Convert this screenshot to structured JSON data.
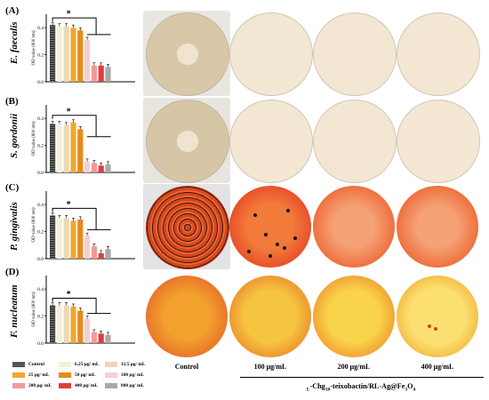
{
  "panels": [
    {
      "letter": "(A)",
      "species": "E. faecalis"
    },
    {
      "letter": "(B)",
      "species": "S. gordonii"
    },
    {
      "letter": "(C)",
      "species": "P. gingivalis"
    },
    {
      "letter": "(D)",
      "species": "F. nucleatum"
    }
  ],
  "legend": {
    "items": [
      {
        "label": "Control",
        "color": "#3a3a3a",
        "hatched": true
      },
      {
        "label": "6.25 μg/ mL",
        "color": "#f5efd6"
      },
      {
        "label": "12.5 μg/ mL",
        "color": "#e9d9b5"
      },
      {
        "label": "25 μg/ mL",
        "color": "#f0a830"
      },
      {
        "label": "50 μg/ mL",
        "color": "#e88a1a"
      },
      {
        "label": "100 μg/ mL",
        "color": "#f7cfcf"
      },
      {
        "label": "200 μg/ mL",
        "color": "#f19a9a"
      },
      {
        "label": "400 μg/ mL",
        "color": "#e43b3b"
      },
      {
        "label": "800 μg/ mL",
        "color": "#a9a9a9"
      }
    ]
  },
  "columns": {
    "control": "Control",
    "c100": "100 μg/mL",
    "c200": "200 μg/mL",
    "c400": "400 μg/mL"
  },
  "treatment": {
    "prefix": "L",
    "name1": "-Chg",
    "sub1": "10",
    "name2": "-teixobactin/RL-Ag@Fe",
    "sub2": "3",
    "name3": "O",
    "sub3": "4"
  },
  "chart_data": [
    {
      "type": "bar",
      "ylabel": "OD value (600 nm)",
      "yticks": [
        "0.0",
        "0.2",
        "0.4"
      ],
      "ylim": [
        0,
        0.5
      ],
      "categories": [
        "Control",
        "6.25 μg/ mL",
        "12.5 μg/ mL",
        "25 μg/ mL",
        "50 μg/ mL",
        "100 μg/ mL",
        "200 μg/ mL",
        "400 μg/ mL",
        "800 μg/ mL"
      ],
      "values": [
        0.42,
        0.41,
        0.41,
        0.4,
        0.38,
        0.31,
        0.12,
        0.12,
        0.11
      ],
      "annotation": "*"
    },
    {
      "type": "bar",
      "ylabel": "OD value (600 nm)",
      "yticks": [
        "0.0",
        "0.2",
        "0.4"
      ],
      "ylim": [
        0,
        0.5
      ],
      "categories": [
        "Control",
        "6.25 μg/ mL",
        "12.5 μg/ mL",
        "25 μg/ mL",
        "50 μg/ mL",
        "100 μg/ mL",
        "200 μg/ mL",
        "400 μg/ mL",
        "800 μg/ mL"
      ],
      "values": [
        0.36,
        0.36,
        0.35,
        0.37,
        0.32,
        0.08,
        0.07,
        0.05,
        0.06
      ],
      "annotation": "*"
    },
    {
      "type": "bar",
      "ylabel": "OD value (600 nm)",
      "yticks": [
        "0.0",
        "0.2",
        "0.4"
      ],
      "ylim": [
        0,
        0.5
      ],
      "categories": [
        "Control",
        "6.25 μg/ mL",
        "12.5 μg/ mL",
        "25 μg/ mL",
        "50 μg/ mL",
        "100 μg/ mL",
        "200 μg/ mL",
        "400 μg/ mL",
        "800 μg/ mL"
      ],
      "values": [
        0.32,
        0.3,
        0.3,
        0.28,
        0.29,
        0.17,
        0.09,
        0.04,
        0.07
      ],
      "annotation": "*"
    },
    {
      "type": "bar",
      "ylabel": "OD value (600 nm)",
      "yticks": [
        "0.0",
        "0.2",
        "0.4"
      ],
      "ylim": [
        0,
        0.5
      ],
      "categories": [
        "Control",
        "6.25 μg/ mL",
        "12.5 μg/ mL",
        "25 μg/ mL",
        "50 μg/ mL",
        "100 μg/ mL",
        "200 μg/ mL",
        "400 μg/ mL",
        "800 μg/ mL"
      ],
      "values": [
        0.28,
        0.28,
        0.28,
        0.27,
        0.24,
        0.18,
        0.08,
        0.07,
        0.06
      ],
      "annotation": "*"
    }
  ]
}
